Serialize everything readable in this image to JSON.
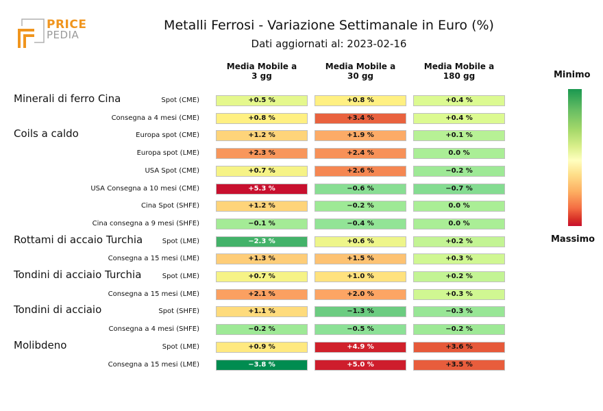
{
  "logo": {
    "line1": "PRICE",
    "line2": "PEDIA"
  },
  "chart_data": {
    "type": "table",
    "title": "Metalli Ferrosi - Variazione Settimanale in Euro (%)",
    "subtitle": "Dati aggiornati al: 2023-02-16",
    "columns": [
      "Media Mobile a\n3 gg",
      "Media Mobile a\n30 gg",
      "Media Mobile a\n180 gg"
    ],
    "colorbar": {
      "top_label": "Minimo",
      "bottom_label": "Massimo"
    },
    "groups": [
      {
        "name": "Minerali di ferro Cina",
        "start_row": 0
      },
      {
        "name": "Coils a caldo",
        "start_row": 2
      },
      {
        "name": "Rottami di accaio Turchia",
        "start_row": 8
      },
      {
        "name": "Tondini di acciaio Turchia",
        "start_row": 10
      },
      {
        "name": "Tondini di acciaio",
        "start_row": 12
      },
      {
        "name": "Molibdeno",
        "start_row": 14
      }
    ],
    "rows": [
      {
        "label": "Spot (CME)",
        "values": [
          "+0.5 %",
          "+0.8 %",
          "+0.4 %"
        ],
        "num": [
          0.5,
          0.8,
          0.4
        ]
      },
      {
        "label": "Consegna a 4 mesi (CME)",
        "values": [
          "+0.8 %",
          "+3.4 %",
          "+0.4 %"
        ],
        "num": [
          0.8,
          3.4,
          0.4
        ]
      },
      {
        "label": "Europa spot (CME)",
        "values": [
          "+1.2 %",
          "+1.9 %",
          "+0.1 %"
        ],
        "num": [
          1.2,
          1.9,
          0.1
        ]
      },
      {
        "label": "Europa spot (LME)",
        "values": [
          "+2.3 %",
          "+2.4 %",
          "0.0 %"
        ],
        "num": [
          2.3,
          2.4,
          0.0
        ]
      },
      {
        "label": "USA Spot (CME)",
        "values": [
          "+0.7 %",
          "+2.6 %",
          "−0.2 %"
        ],
        "num": [
          0.7,
          2.6,
          -0.2
        ]
      },
      {
        "label": "USA Consegna a 10 mesi (CME)",
        "values": [
          "+5.3 %",
          "−0.6 %",
          "−0.7 %"
        ],
        "num": [
          5.3,
          -0.6,
          -0.7
        ]
      },
      {
        "label": "Cina Spot (SHFE)",
        "values": [
          "+1.2 %",
          "−0.2 %",
          "0.0 %"
        ],
        "num": [
          1.2,
          -0.2,
          0.0
        ]
      },
      {
        "label": "Cina consegna a 9 mesi (SHFE)",
        "values": [
          "−0.1 %",
          "−0.4 %",
          "0.0 %"
        ],
        "num": [
          -0.1,
          -0.4,
          0.0
        ]
      },
      {
        "label": "Spot (LME)",
        "values": [
          "−2.3 %",
          "+0.6 %",
          "+0.2 %"
        ],
        "num": [
          -2.3,
          0.6,
          0.2
        ]
      },
      {
        "label": "Consegna a 15 mesi (LME)",
        "values": [
          "+1.3 %",
          "+1.5 %",
          "+0.3 %"
        ],
        "num": [
          1.3,
          1.5,
          0.3
        ]
      },
      {
        "label": "Spot (LME)",
        "values": [
          "+0.7 %",
          "+1.0 %",
          "+0.2 %"
        ],
        "num": [
          0.7,
          1.0,
          0.2
        ]
      },
      {
        "label": "Consegna a 15 mesi (LME)",
        "values": [
          "+2.1 %",
          "+2.0 %",
          "+0.3 %"
        ],
        "num": [
          2.1,
          2.0,
          0.3
        ]
      },
      {
        "label": "Spot (SHFE)",
        "values": [
          "+1.1 %",
          "−1.3 %",
          "−0.3 %"
        ],
        "num": [
          1.1,
          -1.3,
          -0.3
        ]
      },
      {
        "label": "Consegna a 4 mesi (SHFE)",
        "values": [
          "−0.2 %",
          "−0.5 %",
          "−0.2 %"
        ],
        "num": [
          -0.2,
          -0.5,
          -0.2
        ]
      },
      {
        "label": "Spot (LME)",
        "values": [
          "+0.9 %",
          "+4.9 %",
          "+3.6 %"
        ],
        "num": [
          0.9,
          4.9,
          3.6
        ]
      },
      {
        "label": "Consegna a 15 mesi (LME)",
        "values": [
          "−3.8 %",
          "+5.0 %",
          "+3.5 %"
        ],
        "num": [
          -3.8,
          5.0,
          3.5
        ]
      }
    ]
  }
}
